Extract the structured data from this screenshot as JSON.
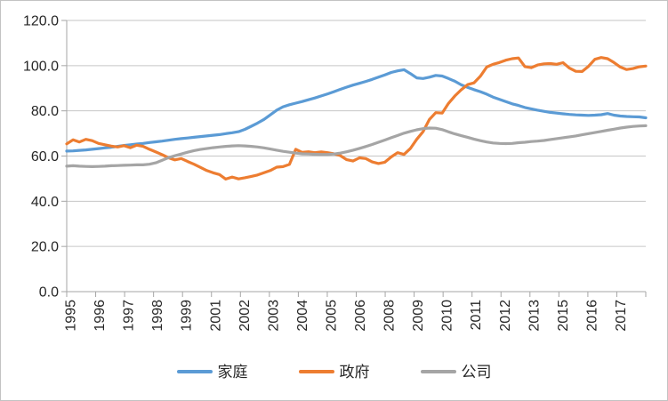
{
  "chart_data": {
    "type": "line",
    "title": "",
    "xlabel": "",
    "ylabel": "",
    "ylim": [
      0,
      120
    ],
    "y_tick_step": 20,
    "grid": true,
    "legend_position": "bottom",
    "y_ticks": [
      "120.0",
      "100.0",
      "80.0",
      "60.0",
      "40.0",
      "20.0",
      "0.0"
    ],
    "x_labels": [
      "1995",
      "1996",
      "1997",
      "1998",
      "1999",
      "2001",
      "2002",
      "2003",
      "2004",
      "2005",
      "2006",
      "2008",
      "2009",
      "2010",
      "2011",
      "2012",
      "2013",
      "2015",
      "2016",
      "2017"
    ],
    "x_range_years": [
      1995,
      2017
    ],
    "points_per_year": 4,
    "series": [
      {
        "key": "household",
        "name": "家庭",
        "color": "#5B9BD5",
        "values": [
          62.2,
          62.3,
          62.5,
          62.7,
          63.0,
          63.3,
          63.6,
          63.9,
          64.3,
          64.7,
          65.0,
          65.3,
          65.6,
          66.0,
          66.3,
          66.6,
          67.0,
          67.4,
          67.7,
          68.0,
          68.3,
          68.6,
          68.9,
          69.2,
          69.5,
          69.9,
          70.3,
          70.8,
          71.8,
          73.2,
          74.6,
          76.2,
          78.2,
          80.3,
          81.8,
          82.7,
          83.4,
          84.1,
          84.9,
          85.7,
          86.6,
          87.5,
          88.5,
          89.5,
          90.5,
          91.4,
          92.2,
          93.0,
          93.9,
          94.9,
          95.9,
          97.0,
          97.7,
          98.2,
          96.5,
          94.6,
          94.3,
          94.9,
          95.7,
          95.4,
          94.3,
          93.1,
          91.5,
          90.4,
          89.4,
          88.5,
          87.4,
          86.1,
          85.1,
          84.1,
          83.1,
          82.4,
          81.5,
          80.9,
          80.3,
          79.8,
          79.3,
          79.0,
          78.7,
          78.4,
          78.2,
          78.1,
          78.0,
          78.1,
          78.3,
          78.8,
          78.1,
          77.7,
          77.5,
          77.4,
          77.3,
          76.9
        ]
      },
      {
        "key": "government",
        "name": "政府",
        "color": "#ED7D31",
        "values": [
          65.4,
          67.2,
          66.2,
          67.4,
          66.8,
          65.6,
          65.0,
          64.4,
          64.0,
          64.6,
          63.7,
          64.8,
          64.3,
          63.0,
          61.8,
          60.6,
          59.2,
          58.3,
          58.9,
          57.6,
          56.4,
          55.0,
          53.6,
          52.6,
          51.8,
          49.8,
          50.7,
          49.9,
          50.4,
          51.0,
          51.6,
          52.6,
          53.6,
          55.1,
          55.3,
          56.3,
          63.0,
          61.6,
          61.9,
          61.5,
          61.8,
          61.5,
          61.0,
          60.2,
          58.4,
          57.8,
          59.2,
          58.9,
          57.4,
          56.7,
          57.3,
          59.6,
          61.5,
          60.7,
          63.3,
          67.4,
          70.8,
          76.2,
          79.2,
          79.0,
          83.3,
          86.6,
          89.3,
          91.6,
          92.4,
          95.3,
          99.4,
          100.6,
          101.4,
          102.4,
          103.1,
          103.4,
          99.6,
          99.1,
          100.3,
          100.8,
          100.9,
          100.6,
          101.3,
          98.9,
          97.5,
          97.4,
          99.7,
          102.8,
          103.6,
          103.1,
          101.4,
          99.4,
          98.3,
          98.7,
          99.5,
          99.8
        ]
      },
      {
        "key": "company",
        "name": "公司",
        "color": "#A5A5A5",
        "values": [
          55.5,
          55.7,
          55.5,
          55.4,
          55.3,
          55.4,
          55.5,
          55.7,
          55.8,
          55.9,
          56.0,
          56.1,
          56.1,
          56.4,
          57.0,
          58.1,
          59.3,
          60.1,
          60.9,
          61.7,
          62.4,
          62.9,
          63.3,
          63.7,
          64.0,
          64.3,
          64.5,
          64.6,
          64.5,
          64.3,
          64.0,
          63.6,
          63.1,
          62.6,
          62.1,
          61.7,
          61.3,
          61.0,
          60.9,
          60.8,
          60.7,
          60.7,
          60.9,
          61.3,
          61.9,
          62.6,
          63.4,
          64.2,
          65.1,
          66.1,
          67.1,
          68.1,
          69.1,
          70.1,
          70.9,
          71.6,
          72.1,
          72.4,
          72.3,
          71.7,
          70.7,
          69.8,
          69.0,
          68.3,
          67.5,
          66.8,
          66.2,
          65.8,
          65.6,
          65.5,
          65.6,
          65.9,
          66.1,
          66.4,
          66.6,
          66.9,
          67.3,
          67.7,
          68.1,
          68.5,
          68.9,
          69.4,
          69.9,
          70.4,
          70.9,
          71.4,
          71.9,
          72.4,
          72.8,
          73.1,
          73.3,
          73.4
        ]
      }
    ]
  }
}
